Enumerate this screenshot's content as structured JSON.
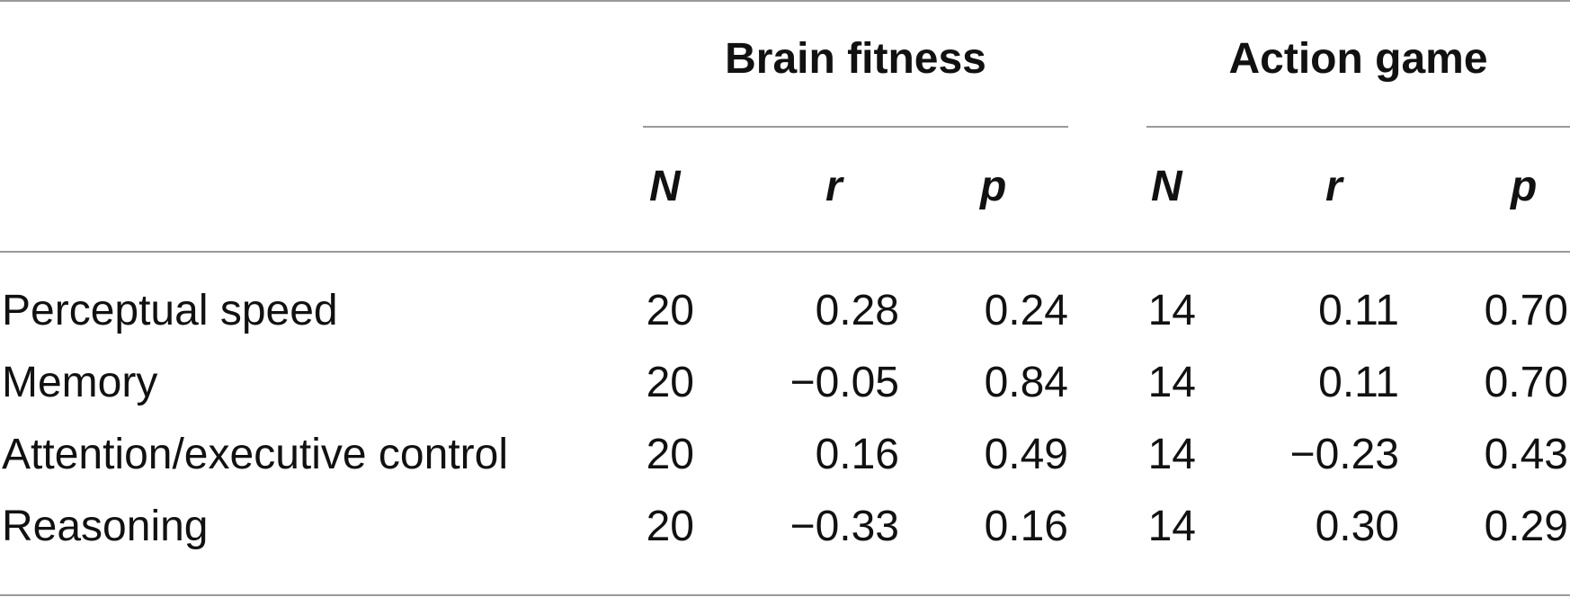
{
  "table": {
    "groups": [
      {
        "label": "Brain fitness"
      },
      {
        "label": "Action game"
      }
    ],
    "columns": [
      "N",
      "r",
      "p",
      "N",
      "r",
      "p"
    ],
    "rows": [
      {
        "label": "Perceptual speed",
        "values": [
          "20",
          "0.28",
          "0.24",
          "14",
          "0.11",
          "0.70"
        ]
      },
      {
        "label": "Memory",
        "values": [
          "20",
          "−0.05",
          "0.84",
          "14",
          "0.11",
          "0.70"
        ]
      },
      {
        "label": "Attention/executive control",
        "values": [
          "20",
          "0.16",
          "0.49",
          "14",
          "−0.23",
          "0.43"
        ]
      },
      {
        "label": "Reasoning",
        "values": [
          "20",
          "−0.33",
          "0.16",
          "14",
          "0.30",
          "0.29"
        ]
      }
    ]
  }
}
